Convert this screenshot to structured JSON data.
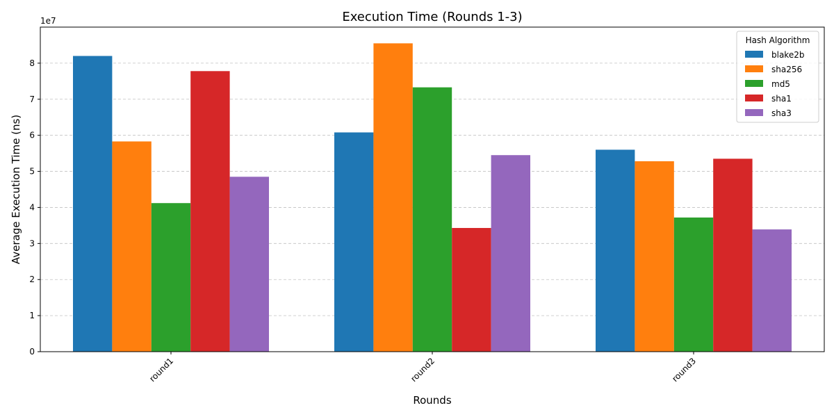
{
  "chart_data": {
    "type": "bar",
    "title": "Execution Time (Rounds 1-3)",
    "xlabel": "Rounds",
    "ylabel": "Average Execution Time (ns)",
    "y_exponent_label": "1e7",
    "categories": [
      "round1",
      "round2",
      "round3"
    ],
    "ylim": [
      0,
      90000000
    ],
    "yticks": [
      0,
      10000000,
      20000000,
      30000000,
      40000000,
      50000000,
      60000000,
      70000000,
      80000000
    ],
    "ytick_labels": [
      "0",
      "1",
      "2",
      "3",
      "4",
      "5",
      "6",
      "7",
      "8"
    ],
    "grid": "y-dashed",
    "legend_title": "Hash Algorithm",
    "legend_position": "top-right",
    "series": [
      {
        "name": "blake2b",
        "color": "#1f77b4",
        "values": [
          82000000,
          60800000,
          56000000
        ]
      },
      {
        "name": "sha256",
        "color": "#ff7f0e",
        "values": [
          58300000,
          85500000,
          52800000
        ]
      },
      {
        "name": "md5",
        "color": "#2ca02c",
        "values": [
          41200000,
          73300000,
          37200000
        ]
      },
      {
        "name": "sha1",
        "color": "#d62728",
        "values": [
          77800000,
          34300000,
          53500000
        ]
      },
      {
        "name": "sha3",
        "color": "#9467bd",
        "values": [
          48500000,
          54500000,
          33900000
        ]
      }
    ]
  }
}
